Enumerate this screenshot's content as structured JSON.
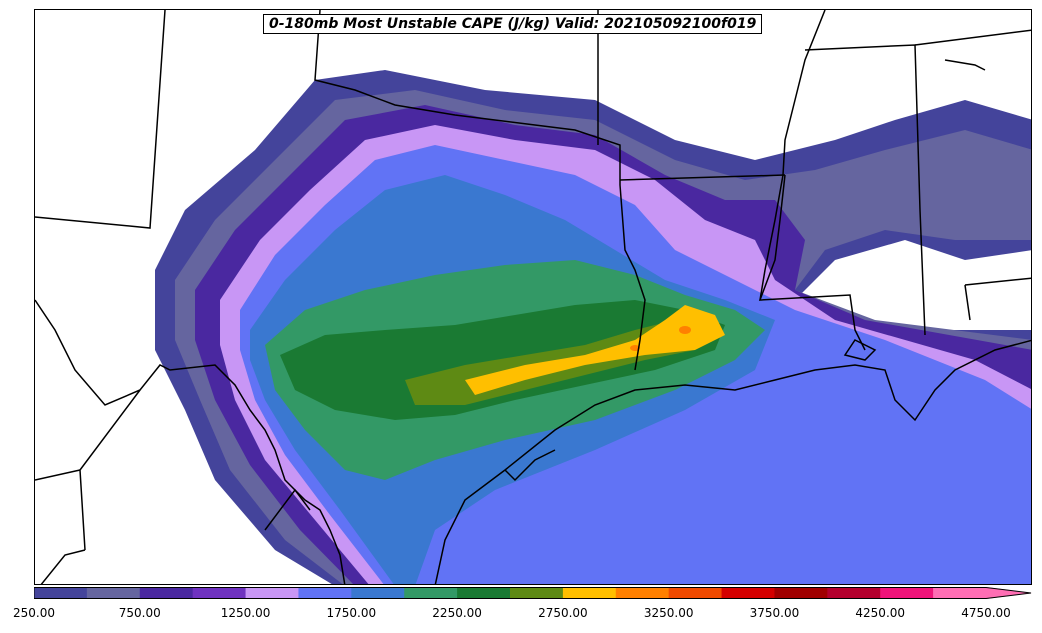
{
  "title": "0-180mb Most Unstable CAPE (J/kg) Valid: 202105092100f019",
  "colorbar": {
    "levels": [
      250,
      500,
      750,
      1000,
      1250,
      1500,
      1750,
      2000,
      2250,
      2500,
      2750,
      3000,
      3250,
      3500,
      3750,
      4000,
      4250,
      4500,
      4750
    ],
    "colors": [
      "#44449b",
      "#65659f",
      "#4a28a0",
      "#6f32c0",
      "#c896f5",
      "#6173f5",
      "#3a78d0",
      "#339966",
      "#1a7a33",
      "#5e8a14",
      "#ffbf00",
      "#ff8000",
      "#f04a00",
      "#d40000",
      "#a00000",
      "#b3002d",
      "#f0147a",
      "#ff6eb4"
    ],
    "extend_color": "#ff6eb4",
    "tick_labels": [
      "250.00",
      "750.00",
      "1250.00",
      "1750.00",
      "2250.00",
      "2750.00",
      "3250.00",
      "3750.00",
      "4250.00",
      "4750.00"
    ]
  }
}
